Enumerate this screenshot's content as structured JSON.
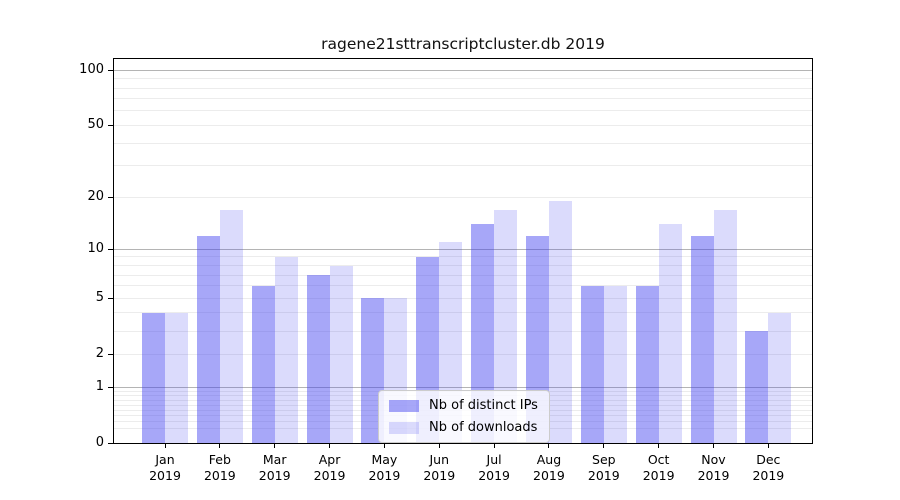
{
  "chart_data": {
    "type": "bar",
    "title": "ragene21sttranscriptcluster.db 2019",
    "categories": [
      "Jan",
      "Feb",
      "Mar",
      "Apr",
      "May",
      "Jun",
      "Jul",
      "Aug",
      "Sep",
      "Oct",
      "Nov",
      "Dec"
    ],
    "x_year_label": "2019",
    "series": [
      {
        "name": "Nb of distinct IPs",
        "color": "rgba(64,64,240,0.46)",
        "values": [
          4,
          12,
          6,
          7,
          5,
          9,
          14,
          12,
          6,
          6,
          12,
          3
        ]
      },
      {
        "name": "Nb of downloads",
        "color": "rgba(64,64,240,0.19)",
        "values": [
          4,
          17,
          9,
          8,
          5,
          11,
          17,
          19,
          6,
          14,
          17,
          4
        ]
      }
    ],
    "yscale": "log1p",
    "ylim": [
      0,
      115
    ],
    "y_ticks": [
      100,
      50,
      20,
      10,
      5,
      2,
      1,
      0
    ],
    "y_minor_gridlines": [
      0.2,
      0.3,
      0.4,
      0.5,
      0.6,
      0.7,
      0.8,
      0.9,
      2,
      3,
      4,
      5,
      6,
      7,
      8,
      9,
      20,
      30,
      40,
      50,
      60,
      70,
      80,
      90
    ],
    "y_major_gridlines": [
      1,
      10,
      100
    ],
    "grid": true,
    "legend": {
      "position": "inside-bottom-center"
    },
    "colors": {
      "axis": "#000000",
      "grid_major": "#b4b4b4",
      "grid_minor": "#ececec",
      "text": "#000000"
    }
  }
}
